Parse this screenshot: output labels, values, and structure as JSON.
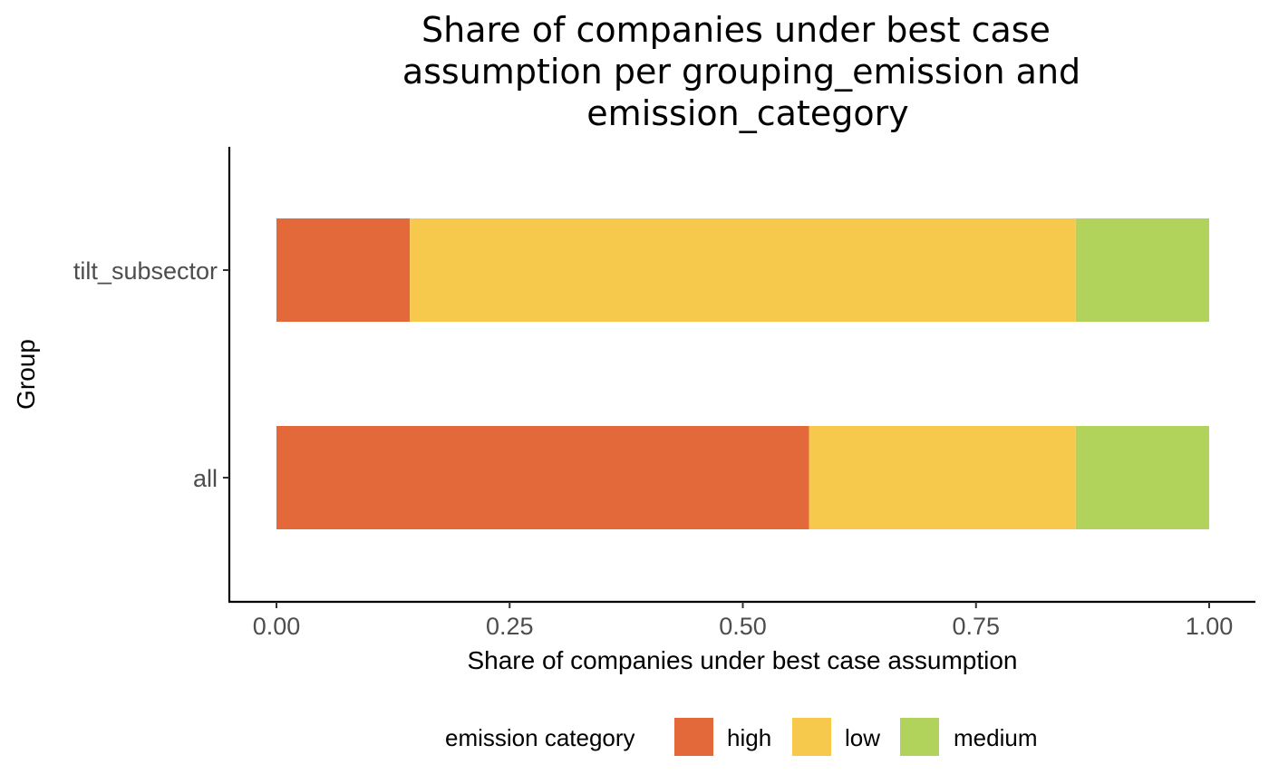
{
  "chart_data": {
    "type": "bar",
    "orientation": "horizontal",
    "stacked": true,
    "title_lines": [
      "Share of companies under best case",
      "assumption per grouping_emission and",
      "emission_category"
    ],
    "xlabel": "Share of companies under best case assumption",
    "ylabel": "Group",
    "xlim": [
      0,
      1
    ],
    "x_ticks": [
      "0.00",
      "0.25",
      "0.50",
      "0.75",
      "1.00"
    ],
    "grid": false,
    "categories": [
      "tilt_subsector",
      "all"
    ],
    "series": [
      {
        "name": "high",
        "color": "#E4693A",
        "values": [
          0.143,
          0.571
        ]
      },
      {
        "name": "low",
        "color": "#F6C94D",
        "values": [
          0.714,
          0.286
        ]
      },
      {
        "name": "medium",
        "color": "#B1D35C",
        "values": [
          0.143,
          0.143
        ]
      }
    ],
    "legend": {
      "title": "emission category",
      "position": "bottom"
    }
  }
}
